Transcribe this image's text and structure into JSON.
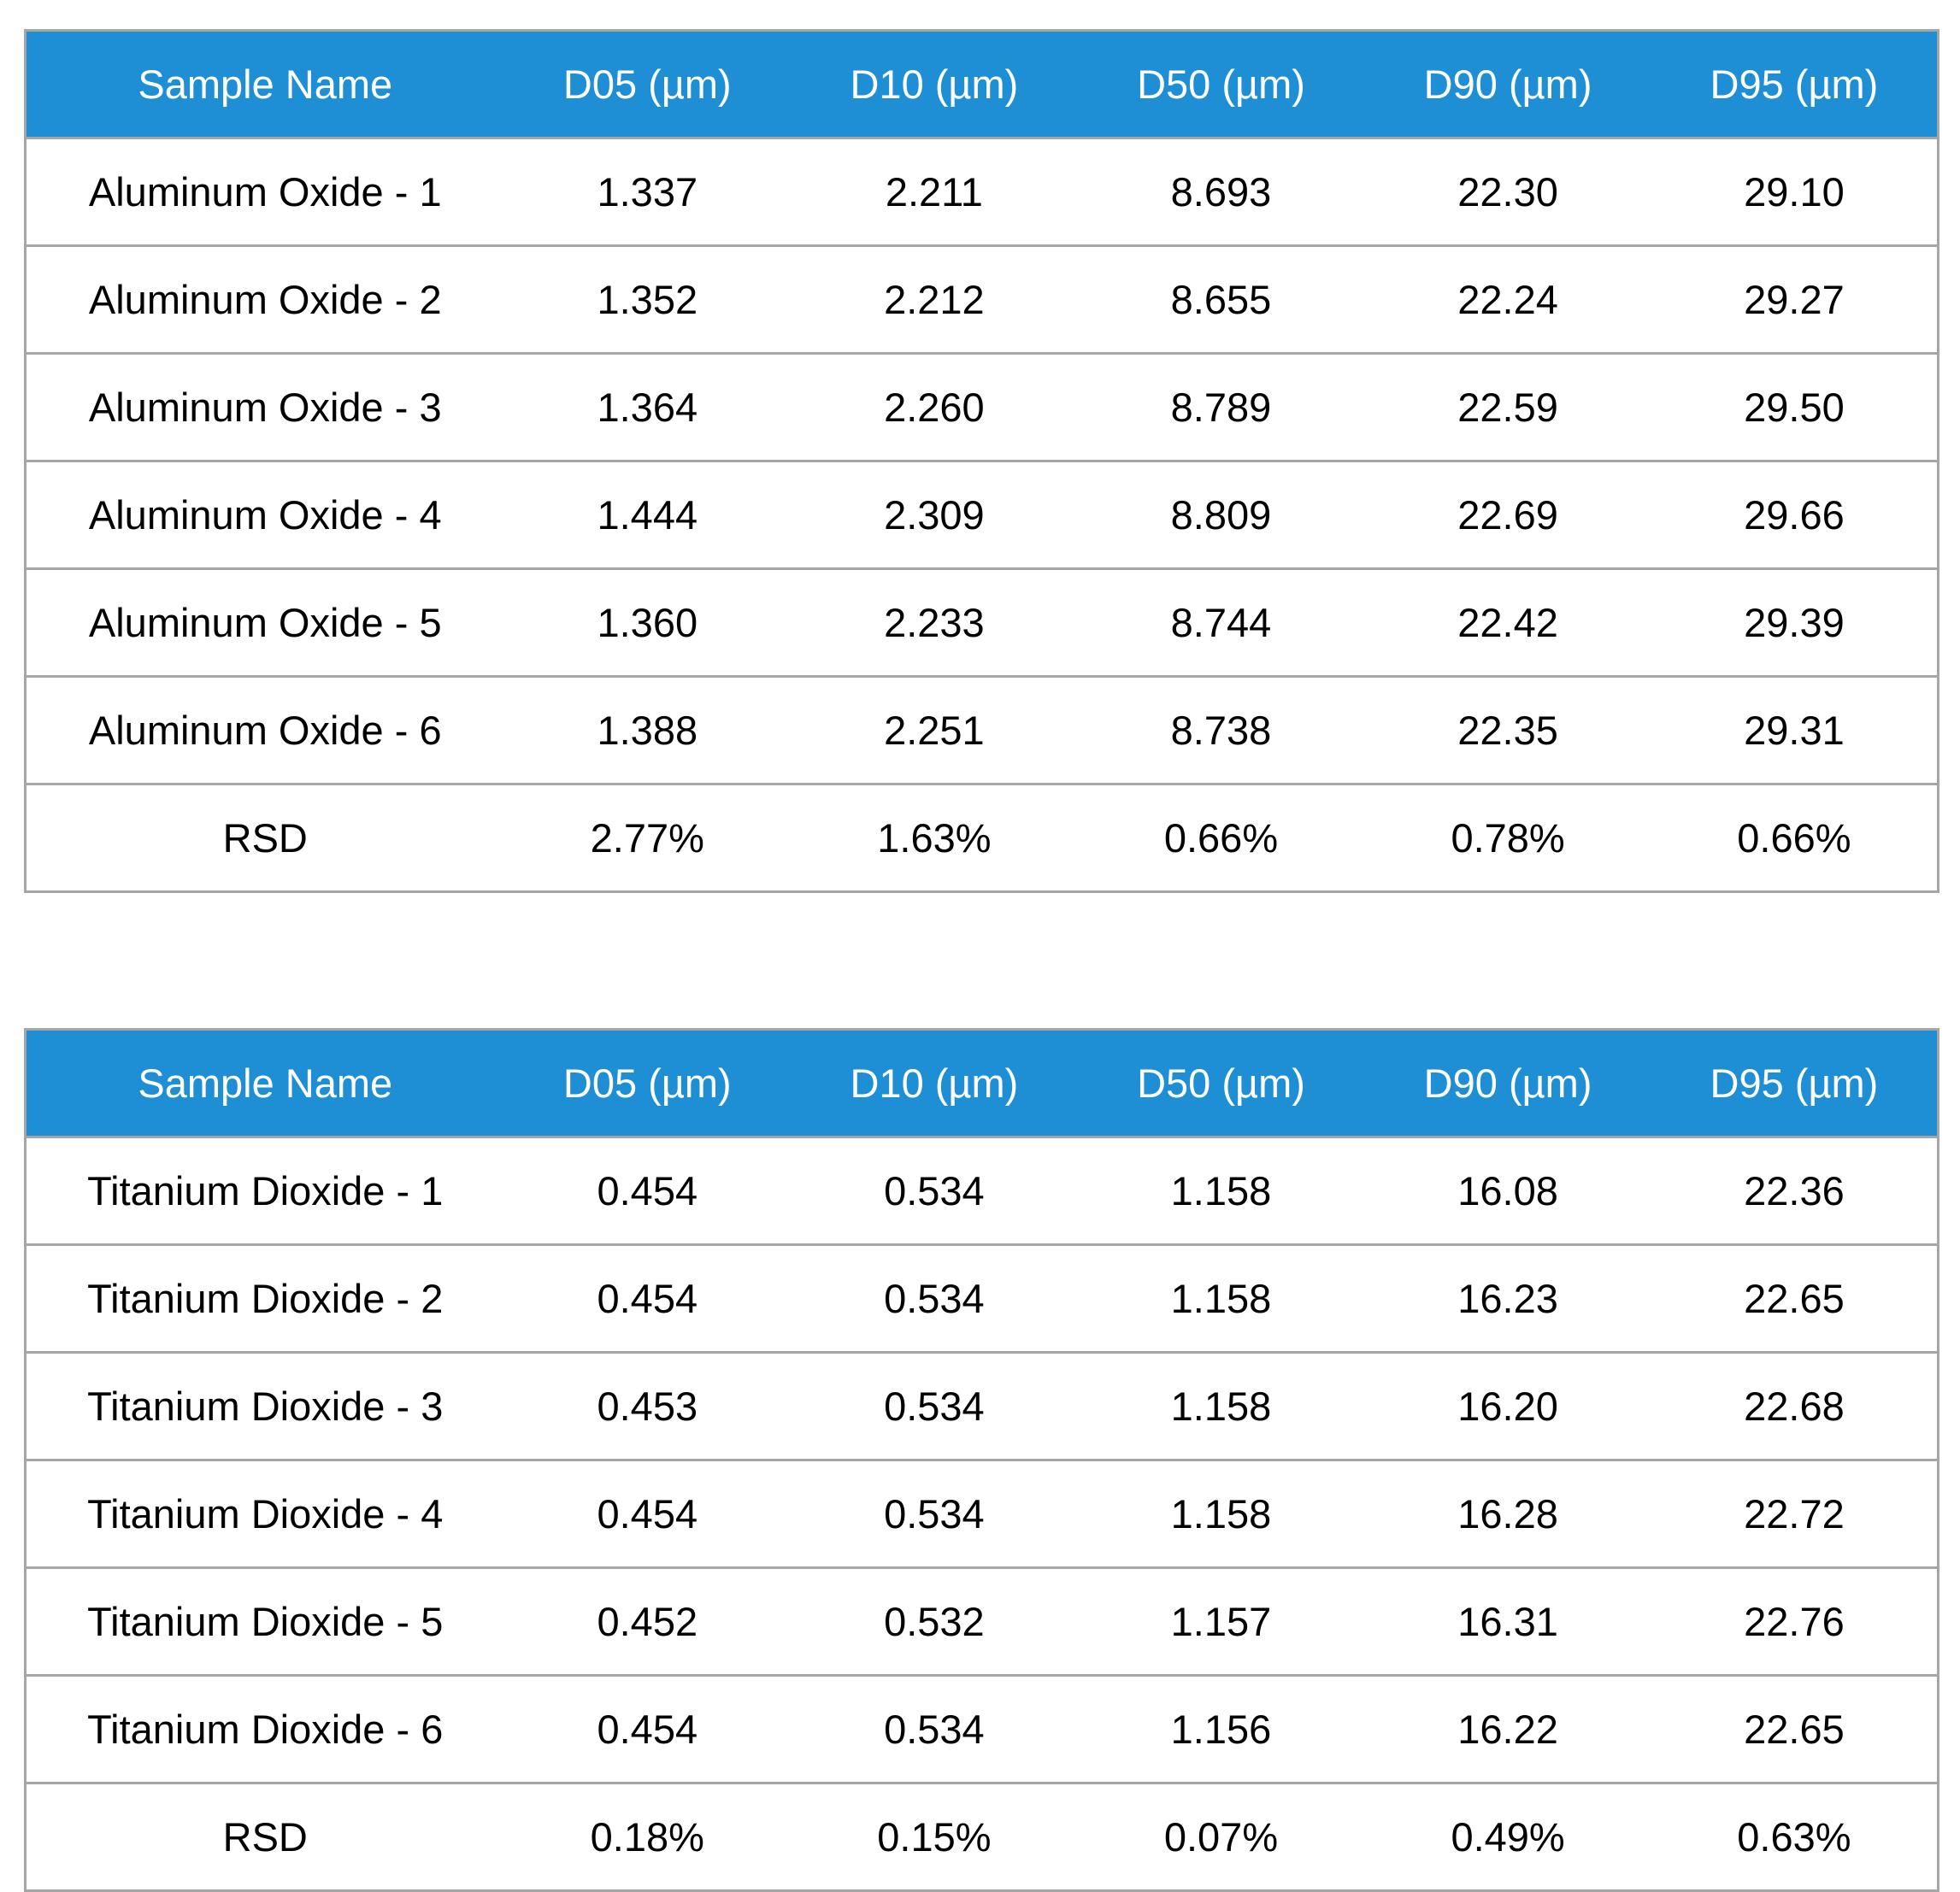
{
  "colors": {
    "header_background": "#1e8fd5",
    "header_text": "#ffffff",
    "border": "#a6a6a6"
  },
  "tables": [
    {
      "headers": [
        "Sample Name",
        "D05 (µm)",
        "D10 (µm)",
        "D50 (µm)",
        "D90 (µm)",
        "D95 (µm)"
      ],
      "rows": [
        [
          "Aluminum Oxide - 1",
          "1.337",
          "2.211",
          "8.693",
          "22.30",
          "29.10"
        ],
        [
          "Aluminum Oxide - 2",
          "1.352",
          "2.212",
          "8.655",
          "22.24",
          "29.27"
        ],
        [
          "Aluminum Oxide - 3",
          "1.364",
          "2.260",
          "8.789",
          "22.59",
          "29.50"
        ],
        [
          "Aluminum Oxide - 4",
          "1.444",
          "2.309",
          "8.809",
          "22.69",
          "29.66"
        ],
        [
          "Aluminum Oxide - 5",
          "1.360",
          "2.233",
          "8.744",
          "22.42",
          "29.39"
        ],
        [
          "Aluminum Oxide - 6",
          "1.388",
          "2.251",
          "8.738",
          "22.35",
          "29.31"
        ],
        [
          "RSD",
          "2.77%",
          "1.63%",
          "0.66%",
          "0.78%",
          "0.66%"
        ]
      ]
    },
    {
      "headers": [
        "Sample Name",
        "D05 (µm)",
        "D10 (µm)",
        "D50 (µm)",
        "D90 (µm)",
        "D95 (µm)"
      ],
      "rows": [
        [
          "Titanium Dioxide - 1",
          "0.454",
          "0.534",
          "1.158",
          "16.08",
          "22.36"
        ],
        [
          "Titanium Dioxide - 2",
          "0.454",
          "0.534",
          "1.158",
          "16.23",
          "22.65"
        ],
        [
          "Titanium Dioxide - 3",
          "0.453",
          "0.534",
          "1.158",
          "16.20",
          "22.68"
        ],
        [
          "Titanium Dioxide - 4",
          "0.454",
          "0.534",
          "1.158",
          "16.28",
          "22.72"
        ],
        [
          "Titanium Dioxide - 5",
          "0.452",
          "0.532",
          "1.157",
          "16.31",
          "22.76"
        ],
        [
          "Titanium Dioxide - 6",
          "0.454",
          "0.534",
          "1.156",
          "16.22",
          "22.65"
        ],
        [
          "RSD",
          "0.18%",
          "0.15%",
          "0.07%",
          "0.49%",
          "0.63%"
        ]
      ]
    }
  ]
}
